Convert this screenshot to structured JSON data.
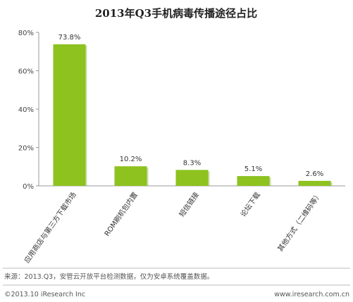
{
  "chart_data": {
    "type": "bar",
    "title": "2013年Q3手机病毒传播途径占比",
    "categories": [
      "应用商店与第三方下载市场",
      "ROM刷机包内置",
      "短信链接",
      "论坛下载",
      "其他方式（二维码等）"
    ],
    "values": [
      73.8,
      10.2,
      8.3,
      5.1,
      2.6
    ],
    "value_labels": [
      "73.8%",
      "10.2%",
      "8.3%",
      "5.1%",
      "2.6%"
    ],
    "ylim": [
      0,
      80
    ],
    "yticks": [
      0,
      20,
      40,
      60,
      80
    ],
    "ytick_labels": [
      "0%",
      "20%",
      "40%",
      "60%",
      "80%"
    ],
    "xlabel": "",
    "ylabel": "",
    "grid": false,
    "colors": {
      "bar": "#8DC21F",
      "bar_shadow": "#6E9A12"
    }
  },
  "footer": {
    "source": "来源：2013.Q3，安管云开放平台检测数据，仅为安卓系统覆盖数据。",
    "copyright": "©2013.10 iResearch Inc",
    "website": "www.iresearch.com.cn"
  }
}
